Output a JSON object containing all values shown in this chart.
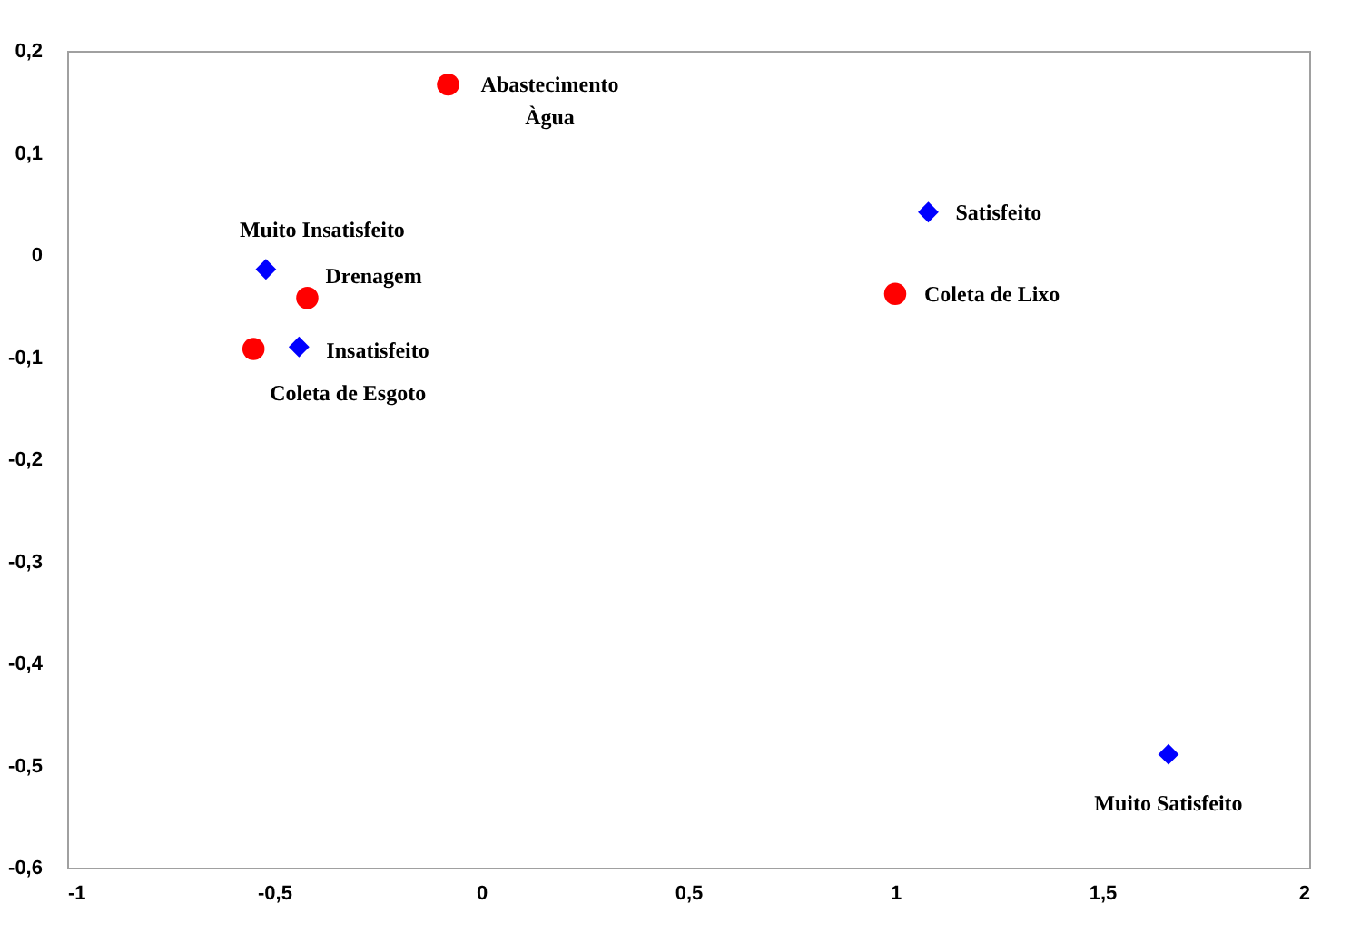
{
  "chart_data": {
    "type": "scatter",
    "series": [
      {
        "name": "Abastecimento Àgua",
        "color": "#ff0000",
        "marker": "circle",
        "x": [
          -0.08
        ],
        "values": [
          0.167
        ]
      },
      {
        "name": "Muito Insatisfeito",
        "color": "#0000ff",
        "marker": "diamond",
        "x": [
          -0.52
        ],
        "values": [
          -0.014
        ]
      },
      {
        "name": "Drenagem",
        "color": "#ff0000",
        "marker": "circle",
        "x": [
          -0.42
        ],
        "values": [
          -0.042
        ]
      },
      {
        "name": "Coleta de Esgoto",
        "color": "#ff0000",
        "marker": "circle",
        "x": [
          -0.55
        ],
        "values": [
          -0.092
        ]
      },
      {
        "name": "Insatisfeito",
        "color": "#0000ff",
        "marker": "diamond",
        "x": [
          -0.44
        ],
        "values": [
          -0.09
        ]
      },
      {
        "name": "Satisfeito",
        "color": "#0000ff",
        "marker": "diamond",
        "x": [
          1.08
        ],
        "values": [
          0.042
        ]
      },
      {
        "name": "Coleta de Lixo",
        "color": "#ff0000",
        "marker": "circle",
        "x": [
          1.0
        ],
        "values": [
          -0.038
        ]
      },
      {
        "name": "Muito Satisfeito",
        "color": "#0000ff",
        "marker": "diamond",
        "x": [
          1.66
        ],
        "values": [
          -0.489
        ]
      }
    ],
    "xlim": [
      -1,
      2
    ],
    "xticks": [
      -1,
      {
        "value": -0.5,
        "label": "-0,5"
      },
      0,
      {
        "value": 0.5,
        "label": "0,5"
      },
      1,
      {
        "value": 1.5,
        "label": "1,5"
      },
      2
    ],
    "ylim": [
      -0.6,
      0.2
    ],
    "yticks": [
      {
        "value": 0.2,
        "label": "0,2"
      },
      {
        "value": 0.1,
        "label": "0,1"
      },
      0,
      {
        "value": -0.1,
        "label": "-0,1"
      },
      {
        "value": -0.2,
        "label": "-0,2"
      },
      {
        "value": -0.3,
        "label": "-0,3"
      },
      {
        "value": -0.4,
        "label": "-0,4"
      },
      {
        "value": -0.5,
        "label": "-0,5"
      },
      {
        "value": -0.6,
        "label": "-0,6"
      }
    ],
    "grid": false
  }
}
